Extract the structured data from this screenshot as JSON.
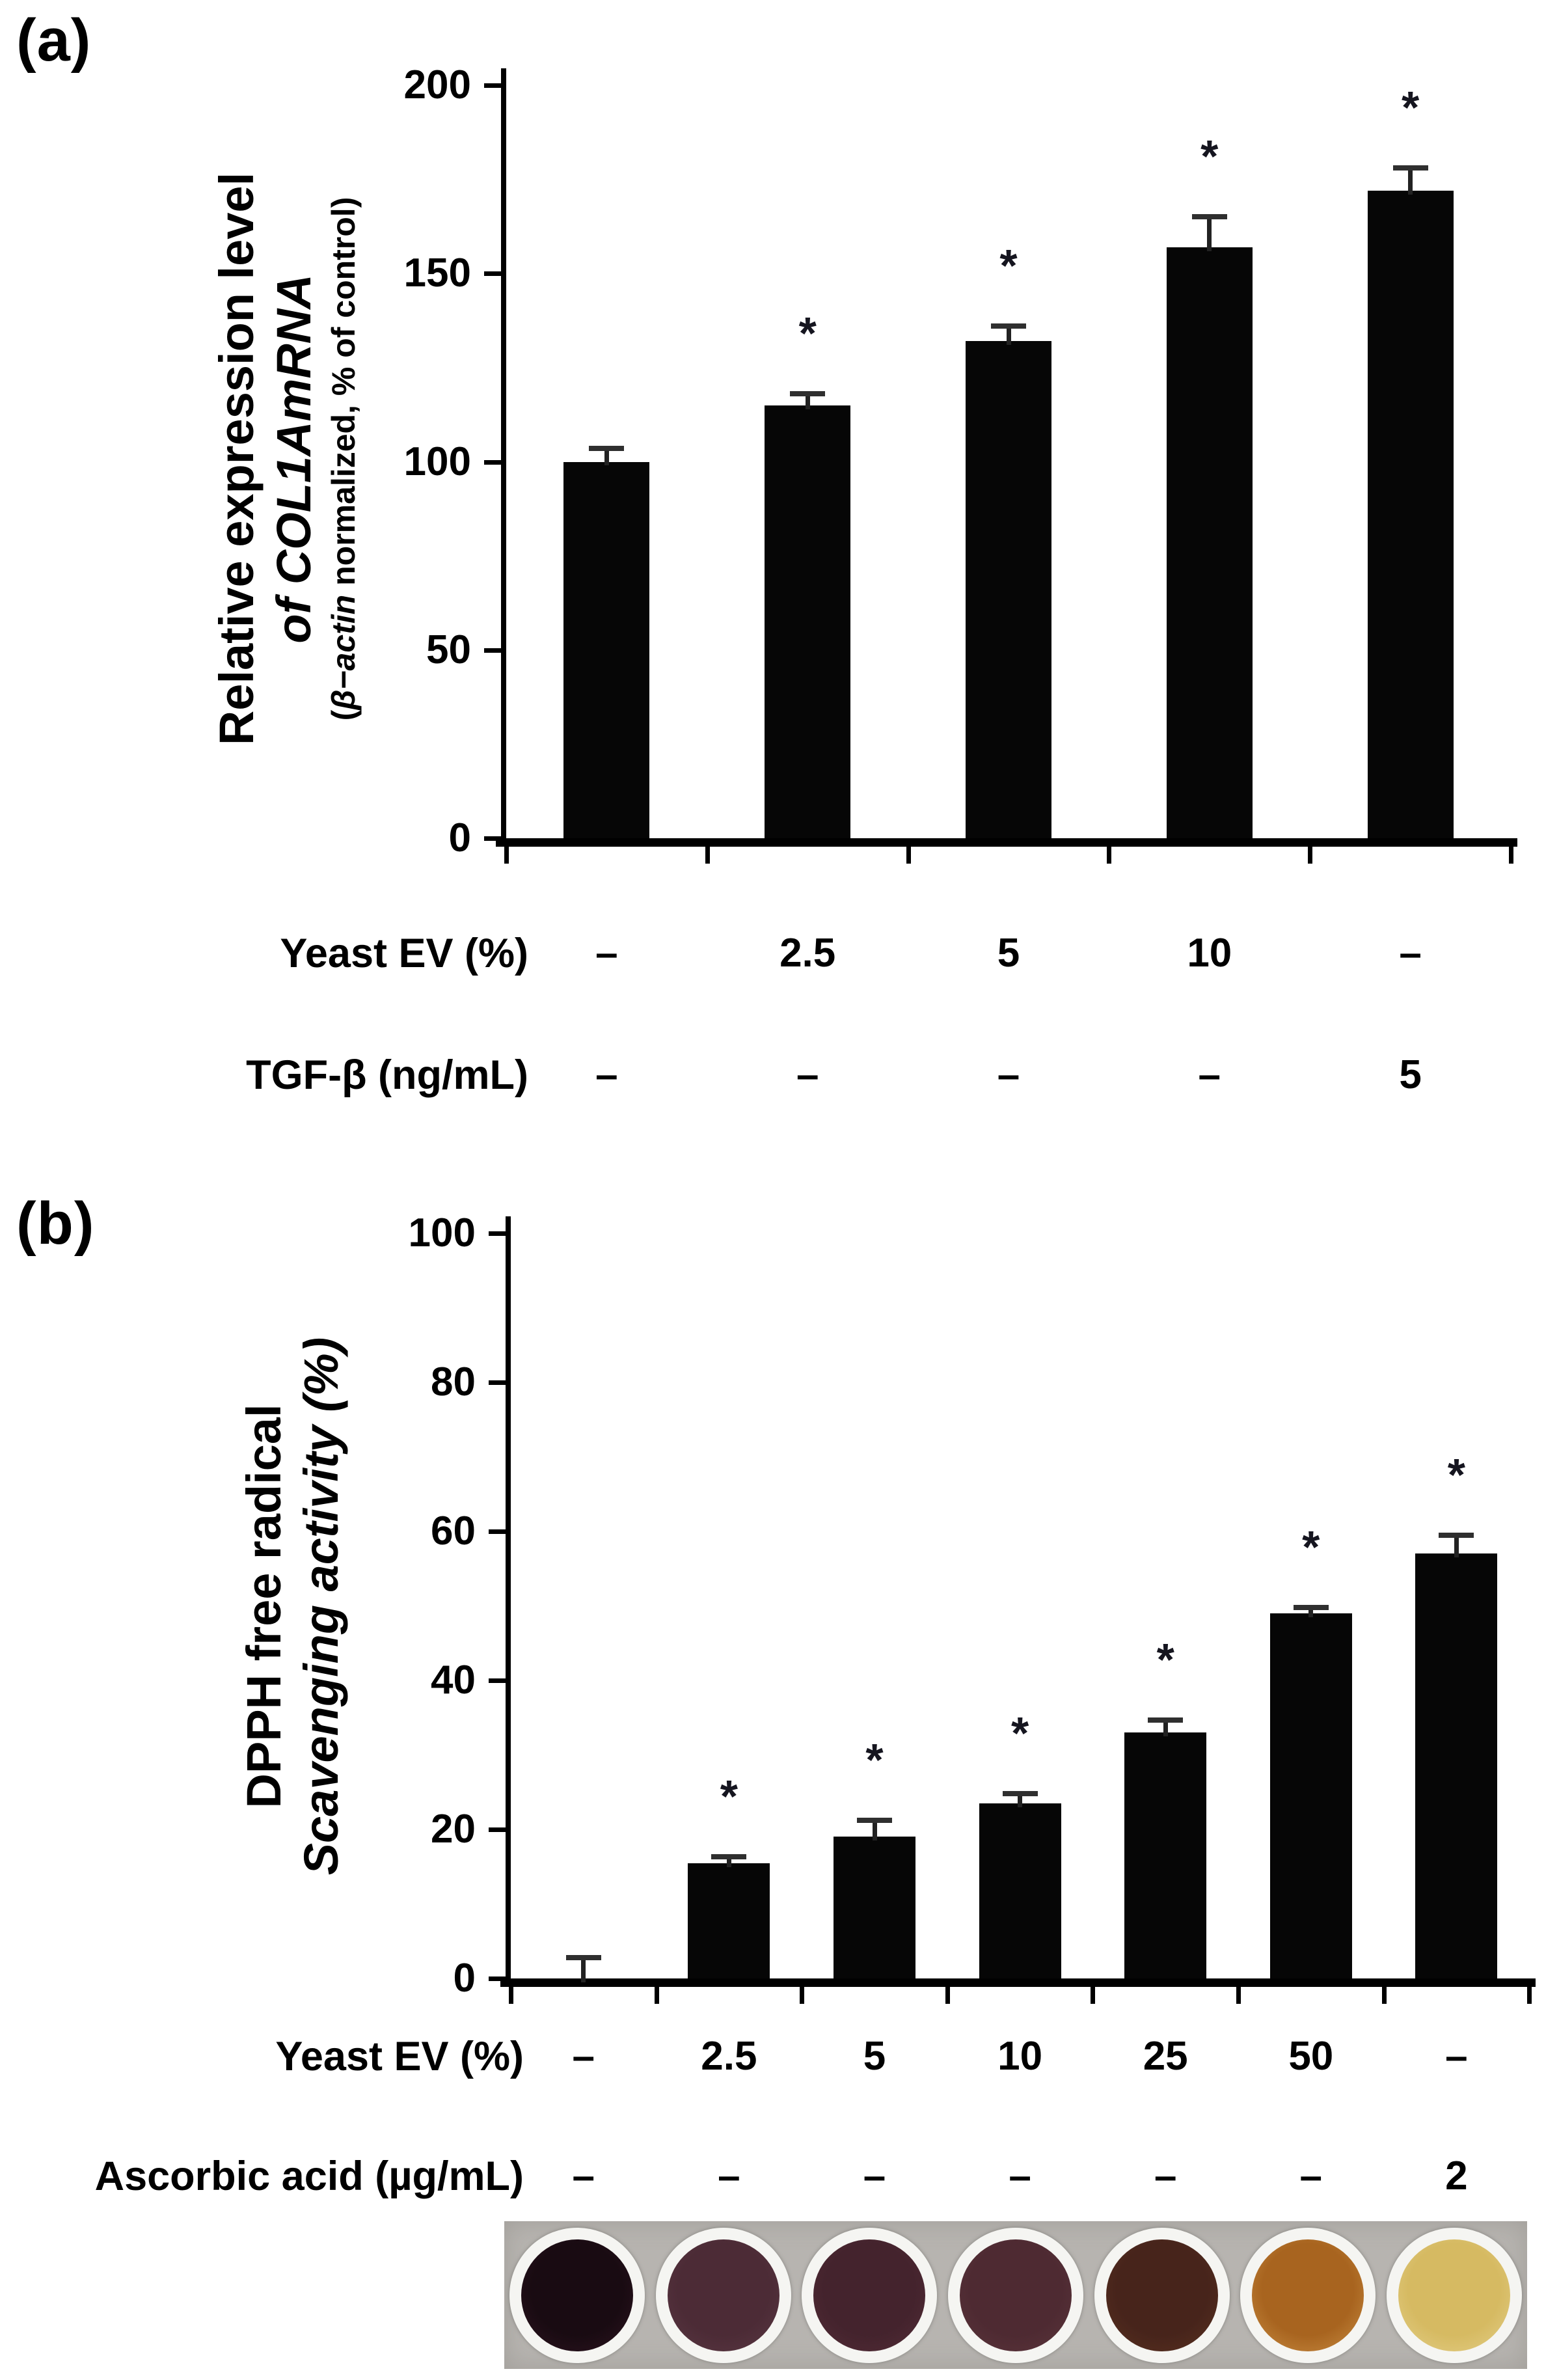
{
  "chart_data": [
    {
      "id": "a",
      "type": "bar",
      "panel_label": "(a)",
      "ylabel_line1": "Relative expression level",
      "ylabel_line2_italic": "of COL1AmRNA",
      "ylabel_sub_open": "(",
      "ylabel_sub_italic": "β−actin",
      "ylabel_sub_rest": " normalized, % of control)",
      "ylim": [
        0,
        200
      ],
      "yticks": [
        0,
        50,
        100,
        150,
        200
      ],
      "bar_color": "#060606",
      "values": [
        100,
        115,
        132,
        157,
        172
      ],
      "errors": [
        3.5,
        3,
        4,
        8,
        6
      ],
      "significant": [
        false,
        true,
        true,
        true,
        true
      ],
      "sig_marker": "*",
      "grid": "off",
      "legend": "none",
      "condition_rows": [
        {
          "label": "Yeast EV (%)",
          "values": [
            "–",
            "2.5",
            "5",
            "10",
            "–"
          ]
        },
        {
          "label": "TGF-β (ng/mL)",
          "values": [
            "–",
            "–",
            "–",
            "–",
            "5"
          ]
        }
      ]
    },
    {
      "id": "b",
      "type": "bar",
      "panel_label": "(b)",
      "ylabel_line1": "DPPH free radical",
      "ylabel_line2_italic": "Scavenging activity (%)",
      "ylim": [
        0,
        100
      ],
      "yticks": [
        0,
        20,
        40,
        60,
        80,
        100
      ],
      "bar_color": "#060606",
      "values": [
        0,
        15.5,
        19,
        23.5,
        33,
        49,
        57
      ],
      "errors": [
        2.8,
        0.8,
        2.2,
        1.3,
        1.7,
        0.8,
        2.5
      ],
      "significant": [
        false,
        true,
        true,
        true,
        true,
        true,
        true
      ],
      "sig_marker": "*",
      "grid": "off",
      "legend": "none",
      "condition_rows": [
        {
          "label": "Yeast EV (%)",
          "values": [
            "–",
            "2.5",
            "5",
            "10",
            "25",
            "50",
            "–"
          ]
        },
        {
          "label": "Ascorbic acid (µg/mL)",
          "values": [
            "–",
            "–",
            "–",
            "–",
            "–",
            "–",
            "2"
          ]
        }
      ]
    }
  ],
  "wells_photo": {
    "background": "#b7b4b0",
    "rim_color": "#f5f5f2",
    "wells": [
      {
        "name": "well-control",
        "center": "#190b12",
        "edge": "#2e1420"
      },
      {
        "name": "well-yeastev-2.5",
        "center": "#4c2b36",
        "edge": "#5a3843"
      },
      {
        "name": "well-yeastev-5",
        "center": "#44232d",
        "edge": "#532d37"
      },
      {
        "name": "well-yeastev-10",
        "center": "#4e2a32",
        "edge": "#5b353b"
      },
      {
        "name": "well-yeastev-25",
        "center": "#47241b",
        "edge": "#5a3120"
      },
      {
        "name": "well-yeastev-50",
        "center": "#a8641f",
        "edge": "#c98e44"
      },
      {
        "name": "well-ascorbic-acid",
        "center": "#d6ba62",
        "edge": "#e4d08a"
      }
    ]
  }
}
